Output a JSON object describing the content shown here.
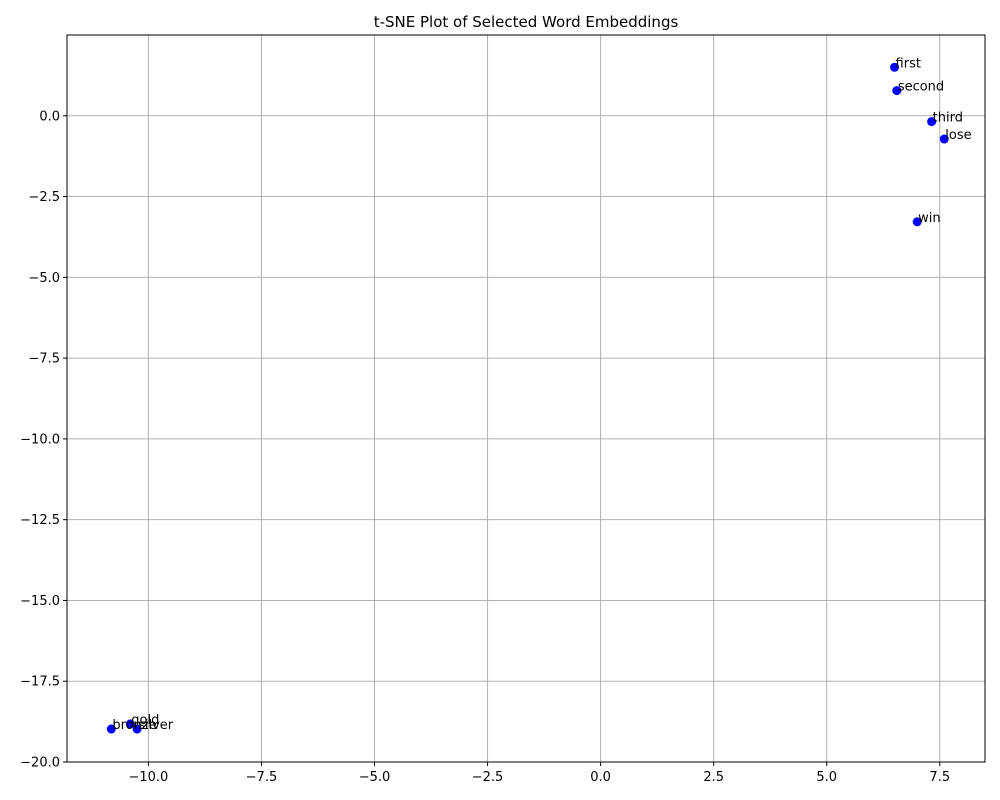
{
  "chart_data": {
    "type": "scatter",
    "title": "t-SNE Plot of Selected Word Embeddings",
    "xlabel": "",
    "ylabel": "",
    "xlim": [
      -11.8,
      8.5
    ],
    "ylim": [
      -20.0,
      2.5
    ],
    "xticks": [
      -10.0,
      -7.5,
      -5.0,
      -2.5,
      0.0,
      2.5,
      5.0,
      7.5
    ],
    "xtick_labels": [
      "−10.0",
      "−7.5",
      "−5.0",
      "−2.5",
      "0.0",
      "2.5",
      "5.0",
      "7.5"
    ],
    "yticks": [
      0.0,
      -2.5,
      -5.0,
      -7.5,
      -10.0,
      -12.5,
      -15.0,
      -17.5,
      -20.0
    ],
    "ytick_labels": [
      "0.0",
      "−2.5",
      "−5.0",
      "−7.5",
      "−10.0",
      "−12.5",
      "−15.0",
      "−17.5",
      "−20.0"
    ],
    "grid": true,
    "marker_color": "#0000ff",
    "points": [
      {
        "label": "first",
        "x": 6.5,
        "y": 1.5
      },
      {
        "label": "second",
        "x": 6.55,
        "y": 0.78
      },
      {
        "label": "third",
        "x": 7.32,
        "y": -0.18
      },
      {
        "label": "lose",
        "x": 7.6,
        "y": -0.72
      },
      {
        "label": "win",
        "x": 7.0,
        "y": -3.28
      },
      {
        "label": "gold",
        "x": -10.4,
        "y": -18.82
      },
      {
        "label": "silver",
        "x": -10.25,
        "y": -18.98
      },
      {
        "label": "bronze",
        "x": -10.82,
        "y": -18.98
      }
    ]
  }
}
